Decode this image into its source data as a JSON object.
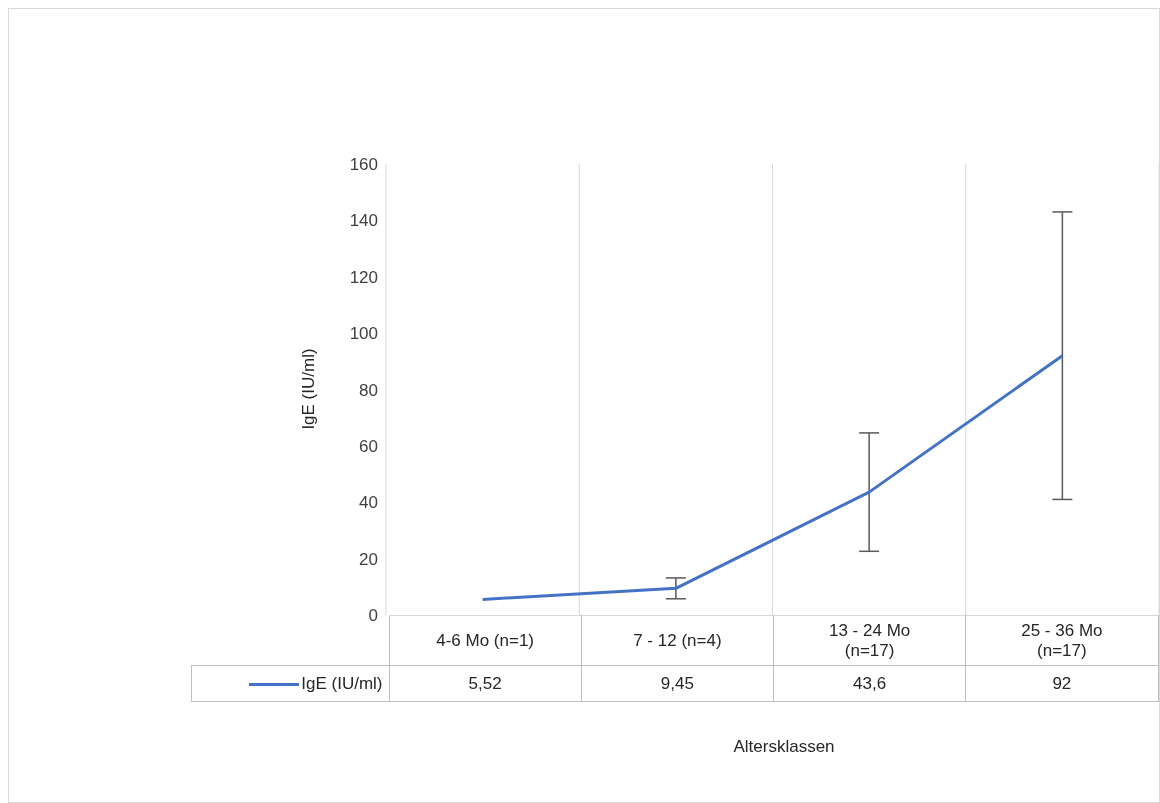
{
  "chart_data": {
    "type": "line",
    "categories": [
      "4-6 Mo (n=1)",
      "7 - 12  (n=4)",
      "13 - 24 Mo (n=17)",
      "25 - 36 Mo (n=17)"
    ],
    "series": [
      {
        "name": "IgE (IU/ml)",
        "color": "#4472c4",
        "values": [
          5.52,
          9.45,
          43.6,
          92
        ],
        "value_labels": [
          "5,52",
          "9,45",
          "43,6",
          "92"
        ],
        "errors": [
          null,
          3.7,
          21,
          51
        ]
      }
    ],
    "ylabel": "IgE (IU/ml)",
    "xlabel": "Altersklassen",
    "ylim": [
      0,
      160
    ],
    "yticks": [
      0,
      20,
      40,
      60,
      80,
      100,
      120,
      140,
      160
    ],
    "grid": "x",
    "legend": "bottom",
    "marker": "none"
  }
}
